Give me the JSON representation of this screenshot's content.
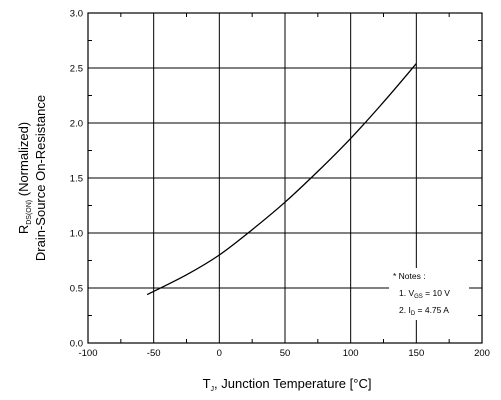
{
  "chart_data": {
    "type": "line",
    "xlabel": {
      "symbol": "T",
      "subscript": "J",
      "text": ", Junction Temperature [°C]"
    },
    "ylabel": {
      "line1_symbol": "R",
      "line1_subscript": "DS(ON)",
      "line1_text": " (Normalized)",
      "line2": "Drain-Source On-Resistance"
    },
    "xlim": [
      -100,
      200
    ],
    "ylim": [
      0.0,
      3.0
    ],
    "xticks": [
      -100,
      -50,
      0,
      50,
      100,
      150,
      200
    ],
    "xtick_labels": [
      "-100",
      "-50",
      "0",
      "50",
      "100",
      "150",
      "200"
    ],
    "yticks": [
      0.0,
      0.5,
      1.0,
      1.5,
      2.0,
      2.5,
      3.0
    ],
    "ytick_labels": [
      "0.0",
      "0.5",
      "1.0",
      "1.5",
      "2.0",
      "2.5",
      "3.0"
    ],
    "grid": true,
    "series": [
      {
        "x": [
          -55,
          -25,
          0,
          25,
          50,
          75,
          100,
          125,
          150
        ],
        "y": [
          0.44,
          0.62,
          0.8,
          1.03,
          1.28,
          1.56,
          1.86,
          2.19,
          2.54
        ]
      }
    ],
    "notes": {
      "title": "* Notes :",
      "line1_prefix": "1. V",
      "line1_sub": "GS",
      "line1_suffix": " = 10 V",
      "line2_prefix": "2. I",
      "line2_sub": "D",
      "line2_suffix": " = 4.75 A"
    }
  }
}
